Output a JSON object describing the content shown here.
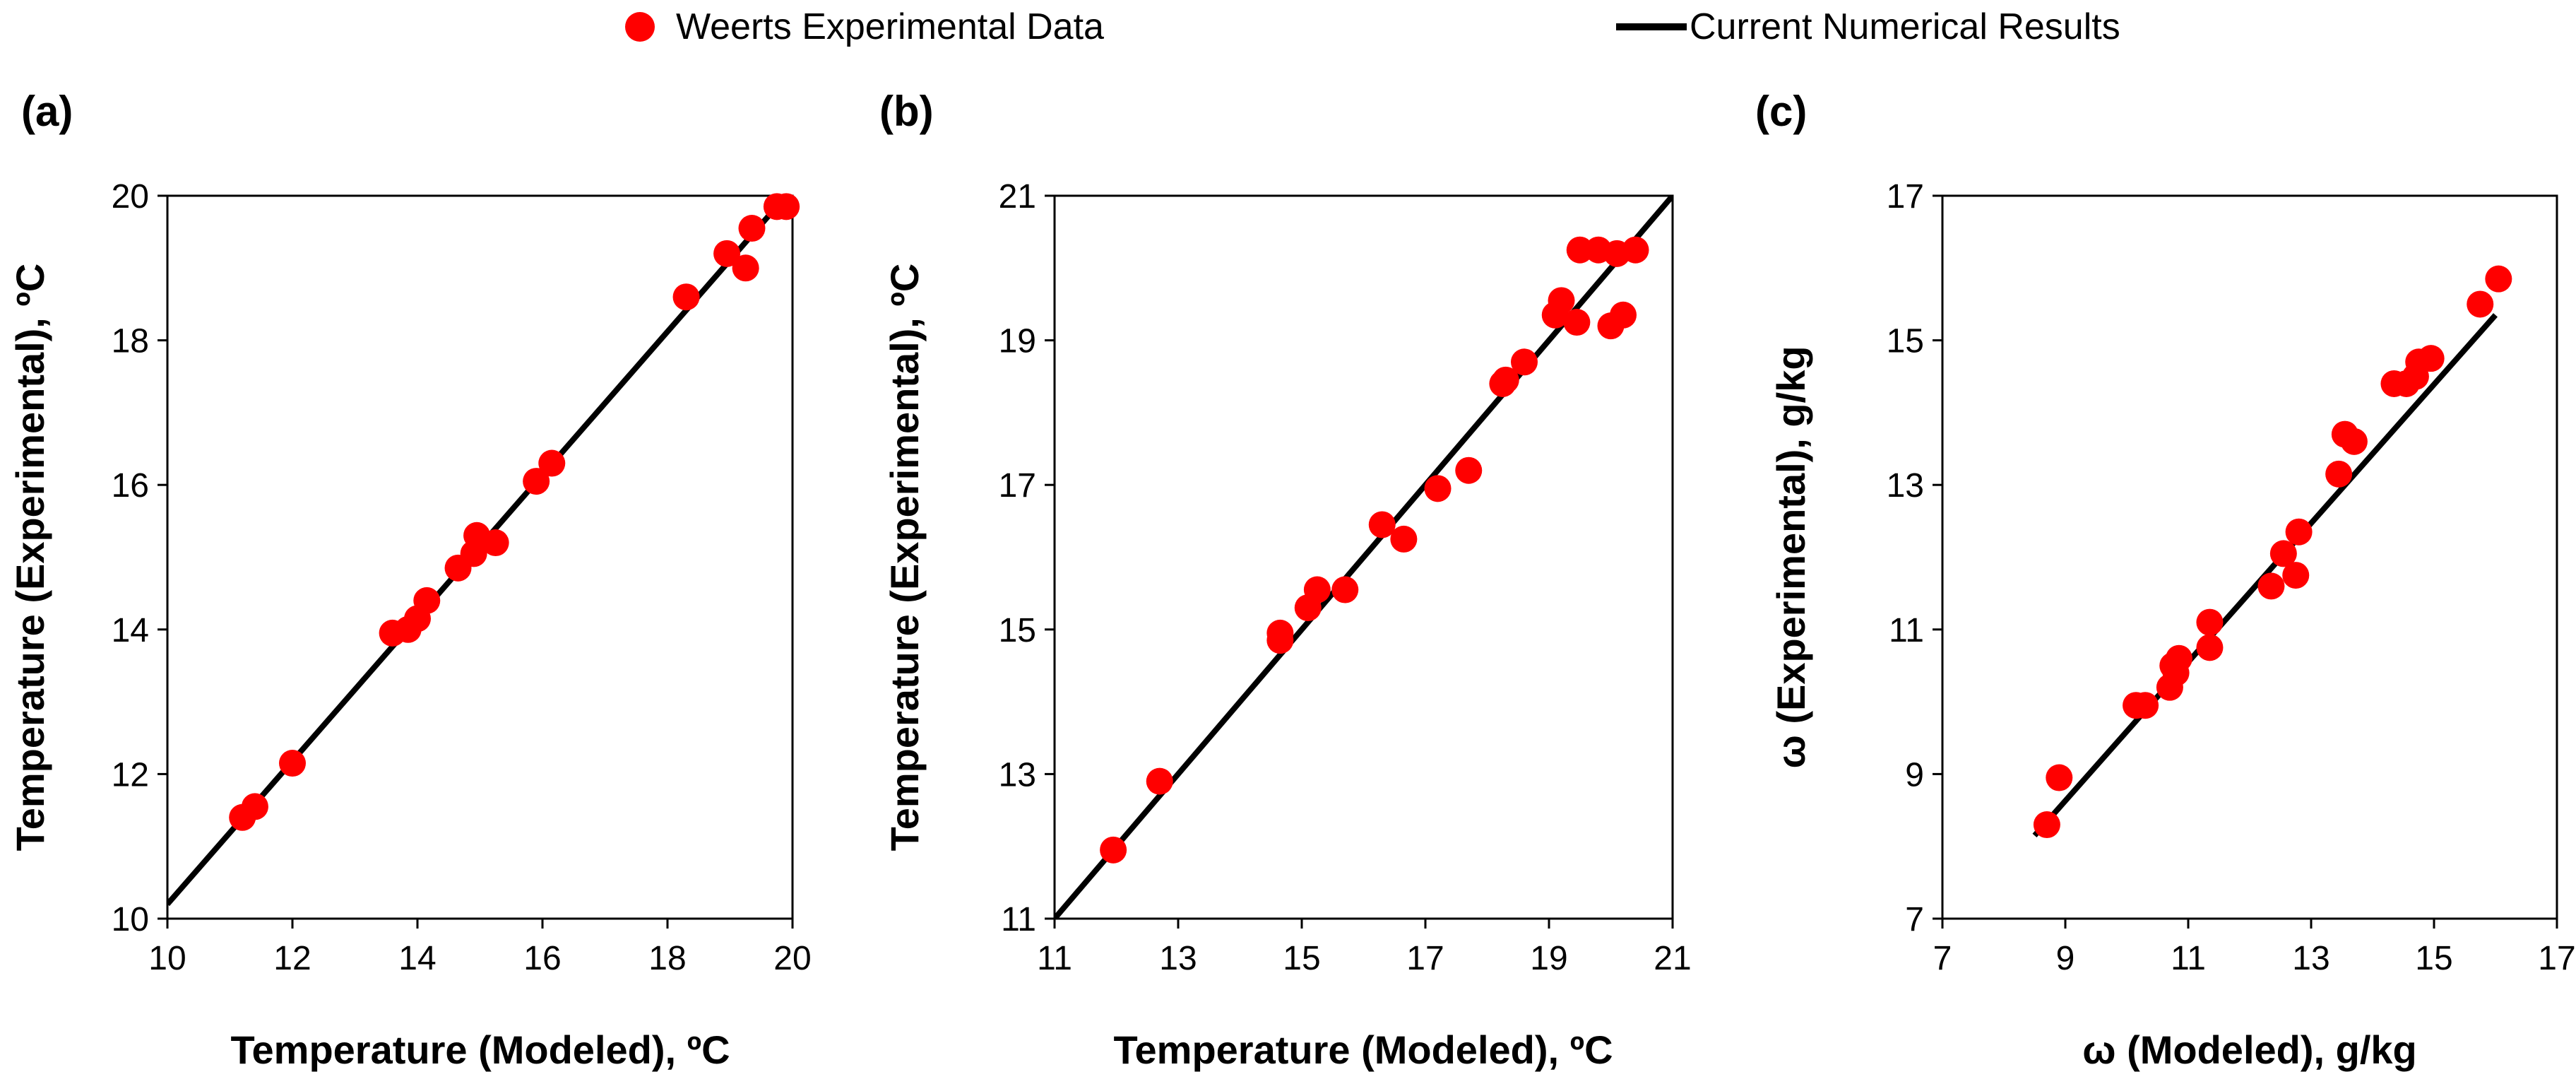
{
  "legend": {
    "experimental_label": "Weerts Experimental Data",
    "numerical_label": "Current Numerical Results",
    "experimental_color": "#ff0000",
    "numerical_color": "#000000"
  },
  "chart_data": [
    {
      "panel": "(a)",
      "type": "scatter",
      "xlabel": "Temperature (Modeled), ºC",
      "ylabel": "Temperature (Experimental), ºC",
      "xlim": [
        10,
        20
      ],
      "ylim": [
        10,
        20
      ],
      "xticks": [
        "10",
        "12",
        "14",
        "16",
        "18",
        "20"
      ],
      "yticks": [
        "10",
        "12",
        "14",
        "16",
        "18",
        "20"
      ],
      "line": {
        "name": "Current Numerical Results",
        "x": [
          10,
          20
        ],
        "y": [
          10.2,
          20.1
        ]
      },
      "series": [
        {
          "name": "Weerts Experimental Data",
          "points": [
            [
              11.2,
              11.4
            ],
            [
              11.4,
              11.55
            ],
            [
              12.0,
              12.15
            ],
            [
              13.6,
              13.95
            ],
            [
              13.85,
              14.0
            ],
            [
              14.0,
              14.15
            ],
            [
              14.15,
              14.4
            ],
            [
              14.65,
              14.85
            ],
            [
              14.9,
              15.05
            ],
            [
              14.95,
              15.3
            ],
            [
              15.25,
              15.2
            ],
            [
              15.9,
              16.05
            ],
            [
              16.15,
              16.3
            ],
            [
              18.3,
              18.6
            ],
            [
              18.95,
              19.2
            ],
            [
              19.25,
              19.0
            ],
            [
              19.35,
              19.55
            ],
            [
              19.75,
              19.85
            ],
            [
              19.9,
              19.85
            ]
          ]
        }
      ]
    },
    {
      "panel": "(b)",
      "type": "scatter",
      "xlabel": "Temperature (Modeled), ºC",
      "ylabel": "Temperature (Experimental), ºC",
      "xlim": [
        11,
        21
      ],
      "ylim": [
        11,
        21
      ],
      "xticks": [
        "11",
        "13",
        "15",
        "17",
        "19",
        "21"
      ],
      "yticks": [
        "11",
        "13",
        "15",
        "17",
        "19",
        "21"
      ],
      "line": {
        "name": "Current Numerical Results",
        "x": [
          11,
          21
        ],
        "y": [
          11,
          21
        ]
      },
      "series": [
        {
          "name": "Weerts Experimental Data",
          "points": [
            [
              11.95,
              11.95
            ],
            [
              12.7,
              12.9
            ],
            [
              14.65,
              14.85
            ],
            [
              14.65,
              14.95
            ],
            [
              15.1,
              15.3
            ],
            [
              15.25,
              15.55
            ],
            [
              15.7,
              15.55
            ],
            [
              16.3,
              16.45
            ],
            [
              16.65,
              16.25
            ],
            [
              17.2,
              16.95
            ],
            [
              17.7,
              17.2
            ],
            [
              18.25,
              18.4
            ],
            [
              18.3,
              18.45
            ],
            [
              18.6,
              18.7
            ],
            [
              19.1,
              19.35
            ],
            [
              19.2,
              19.55
            ],
            [
              19.45,
              19.25
            ],
            [
              19.5,
              20.25
            ],
            [
              19.8,
              20.25
            ],
            [
              20.0,
              19.2
            ],
            [
              20.1,
              20.2
            ],
            [
              20.2,
              19.35
            ],
            [
              20.4,
              20.25
            ]
          ]
        }
      ]
    },
    {
      "panel": "(c)",
      "type": "scatter",
      "xlabel": "ω (Modeled), g/kg",
      "ylabel": "ω (Experimental), g/kg",
      "xlim": [
        7,
        17
      ],
      "ylim": [
        7,
        17
      ],
      "xticks": [
        "7",
        "9",
        "11",
        "13",
        "15",
        "17"
      ],
      "yticks": [
        "7",
        "9",
        "11",
        "13",
        "15",
        "17"
      ],
      "line": {
        "name": "Current Numerical Results",
        "x": [
          8.5,
          16
        ],
        "y": [
          8.15,
          15.35
        ]
      },
      "series": [
        {
          "name": "Weerts Experimental Data",
          "points": [
            [
              8.7,
              8.3
            ],
            [
              8.9,
              8.95
            ],
            [
              10.15,
              9.95
            ],
            [
              10.3,
              9.95
            ],
            [
              10.7,
              10.2
            ],
            [
              10.75,
              10.5
            ],
            [
              10.8,
              10.4
            ],
            [
              10.85,
              10.6
            ],
            [
              11.35,
              10.75
            ],
            [
              11.35,
              11.1
            ],
            [
              12.35,
              11.6
            ],
            [
              12.55,
              12.05
            ],
            [
              12.75,
              11.75
            ],
            [
              12.8,
              12.35
            ],
            [
              13.45,
              13.15
            ],
            [
              13.55,
              13.7
            ],
            [
              13.7,
              13.6
            ],
            [
              14.35,
              14.4
            ],
            [
              14.55,
              14.4
            ],
            [
              14.7,
              14.5
            ],
            [
              14.75,
              14.7
            ],
            [
              14.95,
              14.75
            ],
            [
              15.75,
              15.5
            ],
            [
              16.05,
              15.85
            ]
          ]
        }
      ]
    }
  ]
}
